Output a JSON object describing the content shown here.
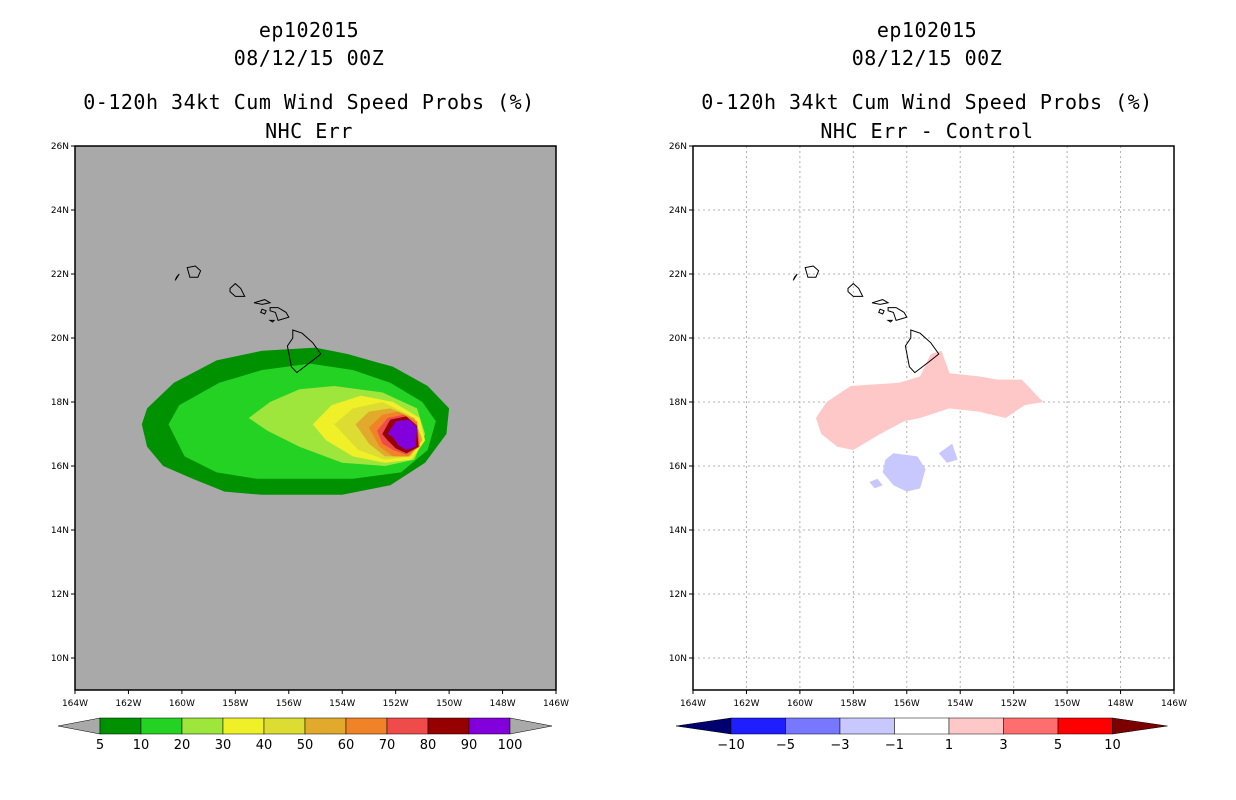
{
  "panels": [
    {
      "storm": "ep102015",
      "datetime": "08/12/15 00Z",
      "title": "0-120h 34kt Cum Wind Speed Probs (%)",
      "subtitle": "NHC Err"
    },
    {
      "storm": "ep102015",
      "datetime": "08/12/15 00Z",
      "title": "0-120h 34kt Cum Wind Speed Probs (%)",
      "subtitle": "NHC Err - Control"
    }
  ],
  "chart_data": [
    {
      "type": "heatmap",
      "title": "0-120h 34kt Cum Wind Speed Probs (%)",
      "subtitle": "NHC Err",
      "xlim": [
        -164,
        -146
      ],
      "ylim": [
        9,
        26
      ],
      "x_ticks": [
        "164W",
        "162W",
        "160W",
        "158W",
        "156W",
        "154W",
        "152W",
        "150W",
        "148W",
        "146W"
      ],
      "y_ticks": [
        "26N",
        "24N",
        "22N",
        "20N",
        "18N",
        "16N",
        "14N",
        "12N",
        "10N"
      ],
      "background_color": "#a9a9a9",
      "grid": false,
      "colorbar": {
        "labels": [
          "5",
          "10",
          "20",
          "30",
          "40",
          "50",
          "60",
          "70",
          "80",
          "90",
          "100"
        ],
        "colors": [
          "#009100",
          "#23d223",
          "#9ee63b",
          "#f0f028",
          "#dcdc32",
          "#e1aa2d",
          "#f08228",
          "#f04b4b",
          "#960000",
          "#8200dc"
        ],
        "under_color": "#a9a9a9",
        "over_color": "#a9a9a9"
      },
      "max_probability_center": {
        "lon": -151.7,
        "lat": 17.0
      }
    },
    {
      "type": "heatmap",
      "title": "0-120h 34kt Cum Wind Speed Probs (%)",
      "subtitle": "NHC Err - Control",
      "xlim": [
        -164,
        -146
      ],
      "ylim": [
        9,
        26
      ],
      "x_ticks": [
        "164W",
        "162W",
        "160W",
        "158W",
        "156W",
        "154W",
        "152W",
        "150W",
        "148W",
        "146W"
      ],
      "y_ticks": [
        "26N",
        "24N",
        "22N",
        "20N",
        "18N",
        "16N",
        "14N",
        "12N",
        "10N"
      ],
      "background_color": "#ffffff",
      "grid": true,
      "colorbar": {
        "labels": [
          "-10",
          "-5",
          "-3",
          "-1",
          "1",
          "3",
          "5",
          "10"
        ],
        "colors": [
          "#0000c8",
          "#1e1eff",
          "#7878ff",
          "#c8c8ff",
          "#ffffff",
          "#ffc8c8",
          "#ff6e6e",
          "#ff0000",
          "#7d0000"
        ],
        "under_color": "#00006e",
        "over_color": "#7d0000"
      }
    }
  ]
}
